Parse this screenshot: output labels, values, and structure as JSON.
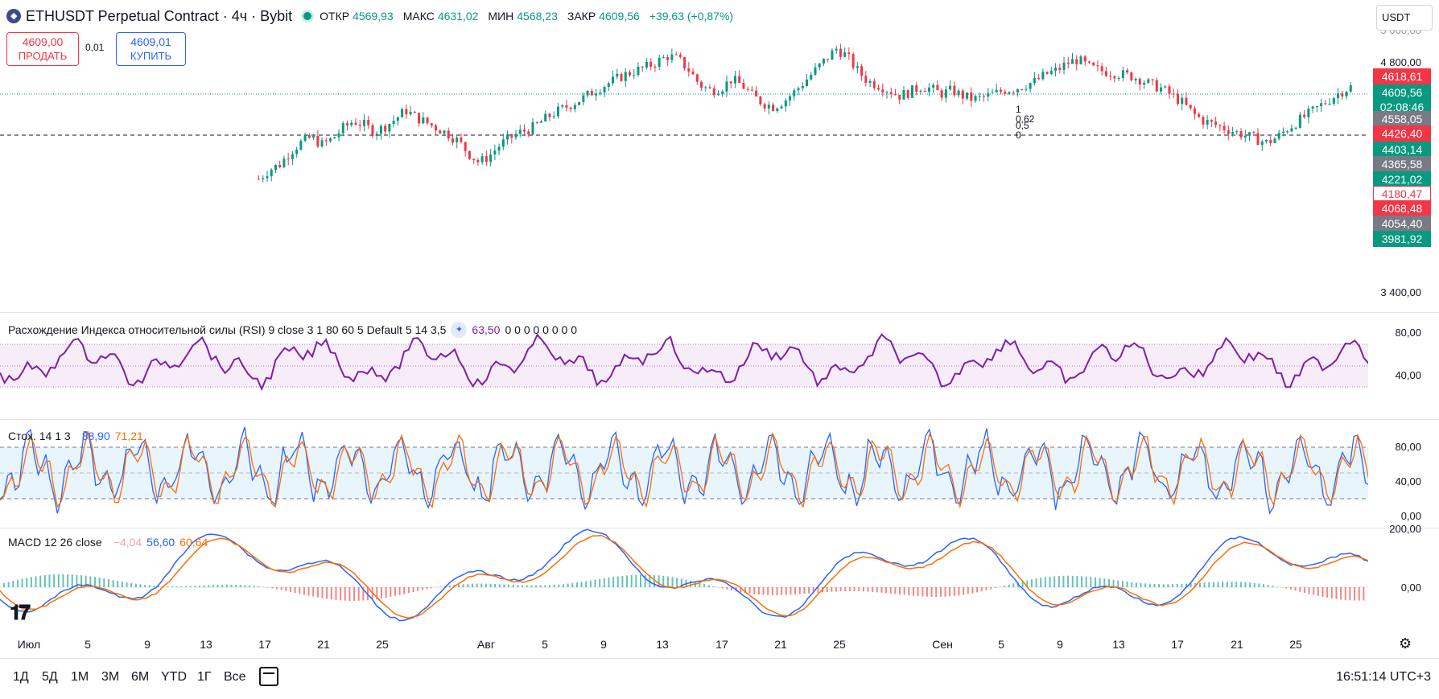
{
  "header": {
    "symbol_title": "ETHUSDT Perpetual Contract · 4ч · Bybit",
    "ohlc": [
      {
        "label": "ОТКР",
        "value": "4569,93"
      },
      {
        "label": "МАКС",
        "value": "4631,02"
      },
      {
        "label": "МИН",
        "value": "4568,23"
      },
      {
        "label": "ЗАКР",
        "value": "4609,56"
      }
    ],
    "change": "+39,63 (+0,87%)",
    "currency": "USDT"
  },
  "trade": {
    "sell_price": "4609,00",
    "sell_label": "ПРОДАТЬ",
    "spread": "0,01",
    "buy_price": "4609,01",
    "buy_label": "КУПИТЬ"
  },
  "price_axis": [
    "4 800,00",
    "3 400,00"
  ],
  "price_axis_partial": "5 000,00",
  "price_tags": [
    {
      "value": "4618,61",
      "color": "#f23645",
      "text_color": "#ffffff"
    },
    {
      "value": "4609,56",
      "sub": "02:08:46",
      "color": "#089981",
      "text_color": "#ffffff"
    },
    {
      "value": "4558,05",
      "color": "#787b86",
      "text_color": "#ffffff"
    },
    {
      "value": "4426,40",
      "color": "#f23645",
      "text_color": "#ffffff"
    },
    {
      "value": "4403,14",
      "color": "#089981",
      "text_color": "#ffffff"
    },
    {
      "value": "4365,58",
      "color": "#787b86",
      "text_color": "#ffffff"
    },
    {
      "value": "4221,02",
      "color": "#089981",
      "text_color": "#ffffff"
    },
    {
      "value": "4180,47",
      "color": "#ffffff",
      "text_color": "#f23645"
    },
    {
      "value": "4068,48",
      "color": "#f23645",
      "text_color": "#ffffff"
    },
    {
      "value": "4054,40",
      "color": "#787b86",
      "text_color": "#ffffff"
    },
    {
      "value": "3981,92",
      "color": "#089981",
      "text_color": "#ffffff"
    }
  ],
  "fib_labels": [
    "1",
    "0,62",
    "0,5",
    "0"
  ],
  "rsi": {
    "title": "Расхождение Индекса относительной силы (RSI) 9 close 3 1 80 60 5 Default 5 14 3,5",
    "value": "63,50",
    "zeros": "0 0 0 0 0 0 0 0",
    "axis": [
      "80,00",
      "40,00"
    ]
  },
  "stoch": {
    "title": "Стох. 14 1 3",
    "k": "88,90",
    "d": "71,21",
    "axis": [
      "80,00",
      "40,00",
      "0,00"
    ]
  },
  "macd": {
    "title": "MACD 12 26 close",
    "hist": "−4,04",
    "macd": "56,60",
    "signal": "60,64",
    "axis": [
      "200,00",
      "0,00"
    ]
  },
  "time_axis": [
    {
      "label": "Июл"
    },
    {
      "label": "5"
    },
    {
      "label": "9"
    },
    {
      "label": "13"
    },
    {
      "label": "17"
    },
    {
      "label": "21"
    },
    {
      "label": "25"
    },
    {
      "label": "Авг"
    },
    {
      "label": "5"
    },
    {
      "label": "9"
    },
    {
      "label": "13"
    },
    {
      "label": "17"
    },
    {
      "label": "21"
    },
    {
      "label": "25"
    },
    {
      "label": "Сен"
    },
    {
      "label": "5"
    },
    {
      "label": "9"
    },
    {
      "label": "13"
    },
    {
      "label": "17"
    },
    {
      "label": "21"
    },
    {
      "label": "25"
    }
  ],
  "ranges": [
    "1Д",
    "5Д",
    "1М",
    "3М",
    "6М",
    "YTD",
    "1Г",
    "Все"
  ],
  "clock": "16:51:14 UTC+3",
  "colors": {
    "up": "#089981",
    "down": "#f23645",
    "rsi": "#7e1ea8",
    "stoch_k": "#2962ff",
    "stoch_d": "#ff6d00"
  },
  "chart_data": {
    "type": "line",
    "title": "ETHUSDT Perpetual Contract · 4ч · Bybit",
    "xlabel": "",
    "ylabel": "",
    "close_path": [
      4100,
      4150,
      4180,
      4250,
      4300,
      4330,
      4290,
      4320,
      4380,
      4420,
      4400,
      4360,
      4390,
      4430,
      4480,
      4440,
      4410,
      4380,
      4350,
      4310,
      4240,
      4190,
      4230,
      4290,
      4330,
      4360,
      4380,
      4420,
      4460,
      4490,
      4520,
      4550,
      4590,
      4620,
      4650,
      4680,
      4700,
      4720,
      4750,
      4780,
      4760,
      4700,
      4620,
      4590,
      4600,
      4650,
      4620,
      4560,
      4520,
      4500,
      4530,
      4580,
      4640,
      4700,
      4760,
      4820,
      4780,
      4700,
      4640,
      4620,
      4590,
      4560,
      4580,
      4610,
      4600,
      4570,
      4590,
      4560,
      4540,
      4550,
      4570,
      4590,
      4600,
      4620,
      4640,
      4680,
      4700,
      4740,
      4760,
      4720,
      4700,
      4690,
      4680,
      4670,
      4650,
      4620,
      4600,
      4560,
      4520,
      4460,
      4420,
      4400,
      4380,
      4360,
      4340,
      4320,
      4300,
      4330,
      4380,
      4420,
      4460,
      4500,
      4540,
      4580,
      4609
    ],
    "ylim": [
      3400,
      5000
    ]
  }
}
